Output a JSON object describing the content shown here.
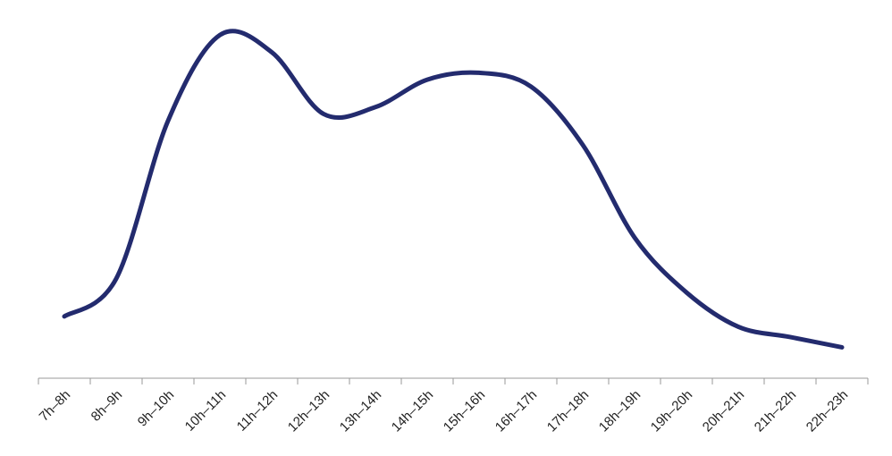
{
  "chart_data": {
    "type": "line",
    "title": "",
    "xlabel": "",
    "ylabel": "",
    "categories": [
      "7h–8h",
      "8h–9h",
      "9h–10h",
      "10h–11h",
      "11h–12h",
      "12h–13h",
      "13h–14h",
      "14h–15h",
      "15h–16h",
      "16h–17h",
      "17h–18h",
      "18h–19h",
      "19h–20h",
      "20h–21h",
      "21h–22h",
      "22h–23h"
    ],
    "series": [
      {
        "values": [
          18,
          29,
          75,
          100,
          95,
          77,
          79,
          87,
          89,
          85,
          68,
          41,
          25,
          15,
          12,
          9
        ],
        "color": "#232b6e"
      }
    ],
    "ylim": [
      0,
      105
    ],
    "grid": false,
    "legend": "none",
    "y_axis_visible": false
  }
}
